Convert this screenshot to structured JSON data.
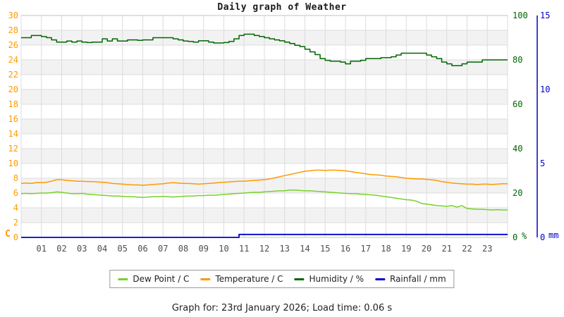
{
  "page": {
    "footer": "Graph for: 23rd January 2026; Load time: 0.06 s"
  },
  "chart_data": {
    "type": "line",
    "title": "Daily graph of Weather",
    "x_unit": "hour of day",
    "x_range": [
      0,
      24
    ],
    "x_start": 0,
    "x_step_hours": 0.25,
    "x_tick_labels": [
      "01",
      "02",
      "03",
      "04",
      "05",
      "06",
      "07",
      "08",
      "09",
      "10",
      "11",
      "12",
      "13",
      "14",
      "15",
      "16",
      "17",
      "18",
      "19",
      "20",
      "21",
      "22",
      "23"
    ],
    "grid": true,
    "legend_position": "bottom",
    "axes": {
      "left": {
        "unit": "C",
        "color": "#ff9900",
        "min": 0,
        "max": 30,
        "ticks": [
          0,
          2,
          4,
          6,
          8,
          10,
          12,
          14,
          16,
          18,
          20,
          22,
          24,
          26,
          28,
          30
        ]
      },
      "humidity": {
        "unit": "%",
        "color": "#006600",
        "min": 0,
        "max": 100,
        "ticks": [
          0,
          20,
          40,
          60,
          80,
          100
        ]
      },
      "rainfall": {
        "unit": "mm",
        "color": "#0000cc",
        "min": 0,
        "max": 15,
        "ticks": [
          0,
          5,
          10,
          15
        ]
      }
    },
    "series": [
      {
        "name": "Dew Point / C",
        "axis": "left",
        "color": "#77d22a",
        "step": false,
        "values": [
          5.9,
          5.95,
          5.9,
          5.95,
          6.0,
          6.0,
          6.05,
          6.15,
          6.1,
          6.0,
          5.9,
          5.9,
          5.95,
          5.85,
          5.8,
          5.75,
          5.7,
          5.65,
          5.6,
          5.6,
          5.55,
          5.5,
          5.5,
          5.45,
          5.4,
          5.45,
          5.5,
          5.5,
          5.55,
          5.5,
          5.45,
          5.5,
          5.55,
          5.6,
          5.6,
          5.65,
          5.65,
          5.7,
          5.7,
          5.75,
          5.8,
          5.85,
          5.9,
          5.95,
          6.0,
          6.05,
          6.1,
          6.1,
          6.15,
          6.2,
          6.25,
          6.3,
          6.3,
          6.4,
          6.4,
          6.35,
          6.3,
          6.3,
          6.25,
          6.2,
          6.15,
          6.1,
          6.05,
          6.0,
          5.95,
          5.9,
          5.9,
          5.85,
          5.8,
          5.75,
          5.7,
          5.6,
          5.5,
          5.4,
          5.3,
          5.2,
          5.1,
          5.05,
          4.9,
          4.6,
          4.5,
          4.4,
          4.3,
          4.25,
          4.2,
          4.3,
          4.1,
          4.3,
          3.9,
          3.85,
          3.8,
          3.8,
          3.75,
          3.7,
          3.75,
          3.7,
          3.7
        ]
      },
      {
        "name": "Temperature / C",
        "axis": "left",
        "color": "#ff9900",
        "step": false,
        "values": [
          7.3,
          7.35,
          7.3,
          7.4,
          7.4,
          7.45,
          7.6,
          7.8,
          7.8,
          7.7,
          7.65,
          7.6,
          7.6,
          7.55,
          7.55,
          7.5,
          7.45,
          7.4,
          7.3,
          7.25,
          7.2,
          7.15,
          7.1,
          7.1,
          7.05,
          7.1,
          7.15,
          7.2,
          7.25,
          7.35,
          7.4,
          7.35,
          7.3,
          7.3,
          7.25,
          7.2,
          7.25,
          7.3,
          7.35,
          7.4,
          7.45,
          7.5,
          7.55,
          7.6,
          7.6,
          7.65,
          7.7,
          7.75,
          7.8,
          7.9,
          8.05,
          8.2,
          8.35,
          8.5,
          8.65,
          8.8,
          8.95,
          9.0,
          9.1,
          9.1,
          9.05,
          9.1,
          9.1,
          9.05,
          9.0,
          8.9,
          8.8,
          8.7,
          8.6,
          8.5,
          8.45,
          8.4,
          8.3,
          8.25,
          8.2,
          8.1,
          8.0,
          7.95,
          7.9,
          7.9,
          7.85,
          7.8,
          7.7,
          7.55,
          7.45,
          7.35,
          7.3,
          7.25,
          7.2,
          7.2,
          7.15,
          7.2,
          7.2,
          7.15,
          7.2,
          7.25,
          7.25
        ]
      },
      {
        "name": "Humidity / %",
        "axis": "humidity",
        "color": "#006600",
        "step": true,
        "values": [
          90,
          90,
          91,
          91,
          90.5,
          90,
          89,
          88,
          88,
          88.5,
          88,
          88.5,
          88,
          87.8,
          88,
          88,
          89.5,
          88.5,
          89.5,
          88.5,
          88.5,
          89,
          89,
          88.8,
          89,
          89,
          90,
          90,
          90,
          90,
          89.5,
          89,
          88.5,
          88.3,
          88,
          88.6,
          88.6,
          88,
          87.6,
          87.6,
          87.8,
          88.3,
          89.5,
          91,
          91.6,
          91.6,
          91,
          90.5,
          90,
          89.5,
          89,
          88.6,
          88,
          87.4,
          86.6,
          86,
          84.8,
          83.6,
          82.4,
          80.6,
          79.8,
          79.4,
          79.4,
          79,
          78.2,
          79.4,
          79.4,
          79.8,
          80.6,
          80.6,
          80.6,
          81,
          81,
          81.4,
          82.2,
          83,
          83,
          83,
          83,
          83,
          82.2,
          81.4,
          80.6,
          79,
          78.2,
          77.4,
          77.4,
          78.2,
          79,
          79,
          79,
          80,
          80,
          80,
          80,
          80,
          80
        ]
      },
      {
        "name": "Rainfall / mm",
        "axis": "rainfall",
        "color": "#0000cc",
        "step": true,
        "values": [
          0,
          0,
          0,
          0,
          0,
          0,
          0,
          0,
          0,
          0,
          0,
          0,
          0,
          0,
          0,
          0,
          0,
          0,
          0,
          0,
          0,
          0,
          0,
          0,
          0,
          0,
          0,
          0,
          0,
          0,
          0,
          0,
          0,
          0,
          0,
          0,
          0,
          0,
          0,
          0,
          0,
          0,
          0,
          0.2,
          0.2,
          0.2,
          0.2,
          0.2,
          0.2,
          0.2,
          0.2,
          0.2,
          0.2,
          0.2,
          0.2,
          0.2,
          0.2,
          0.2,
          0.2,
          0.2,
          0.2,
          0.2,
          0.2,
          0.2,
          0.2,
          0.2,
          0.2,
          0.2,
          0.2,
          0.2,
          0.2,
          0.2,
          0.2,
          0.2,
          0.2,
          0.2,
          0.2,
          0.2,
          0.2,
          0.2,
          0.2,
          0.2,
          0.2,
          0.2,
          0.2,
          0.2,
          0.2,
          0.2,
          0.2,
          0.2,
          0.2,
          0.2,
          0.2,
          0.2,
          0.2,
          0.2,
          0.2
        ]
      }
    ]
  }
}
